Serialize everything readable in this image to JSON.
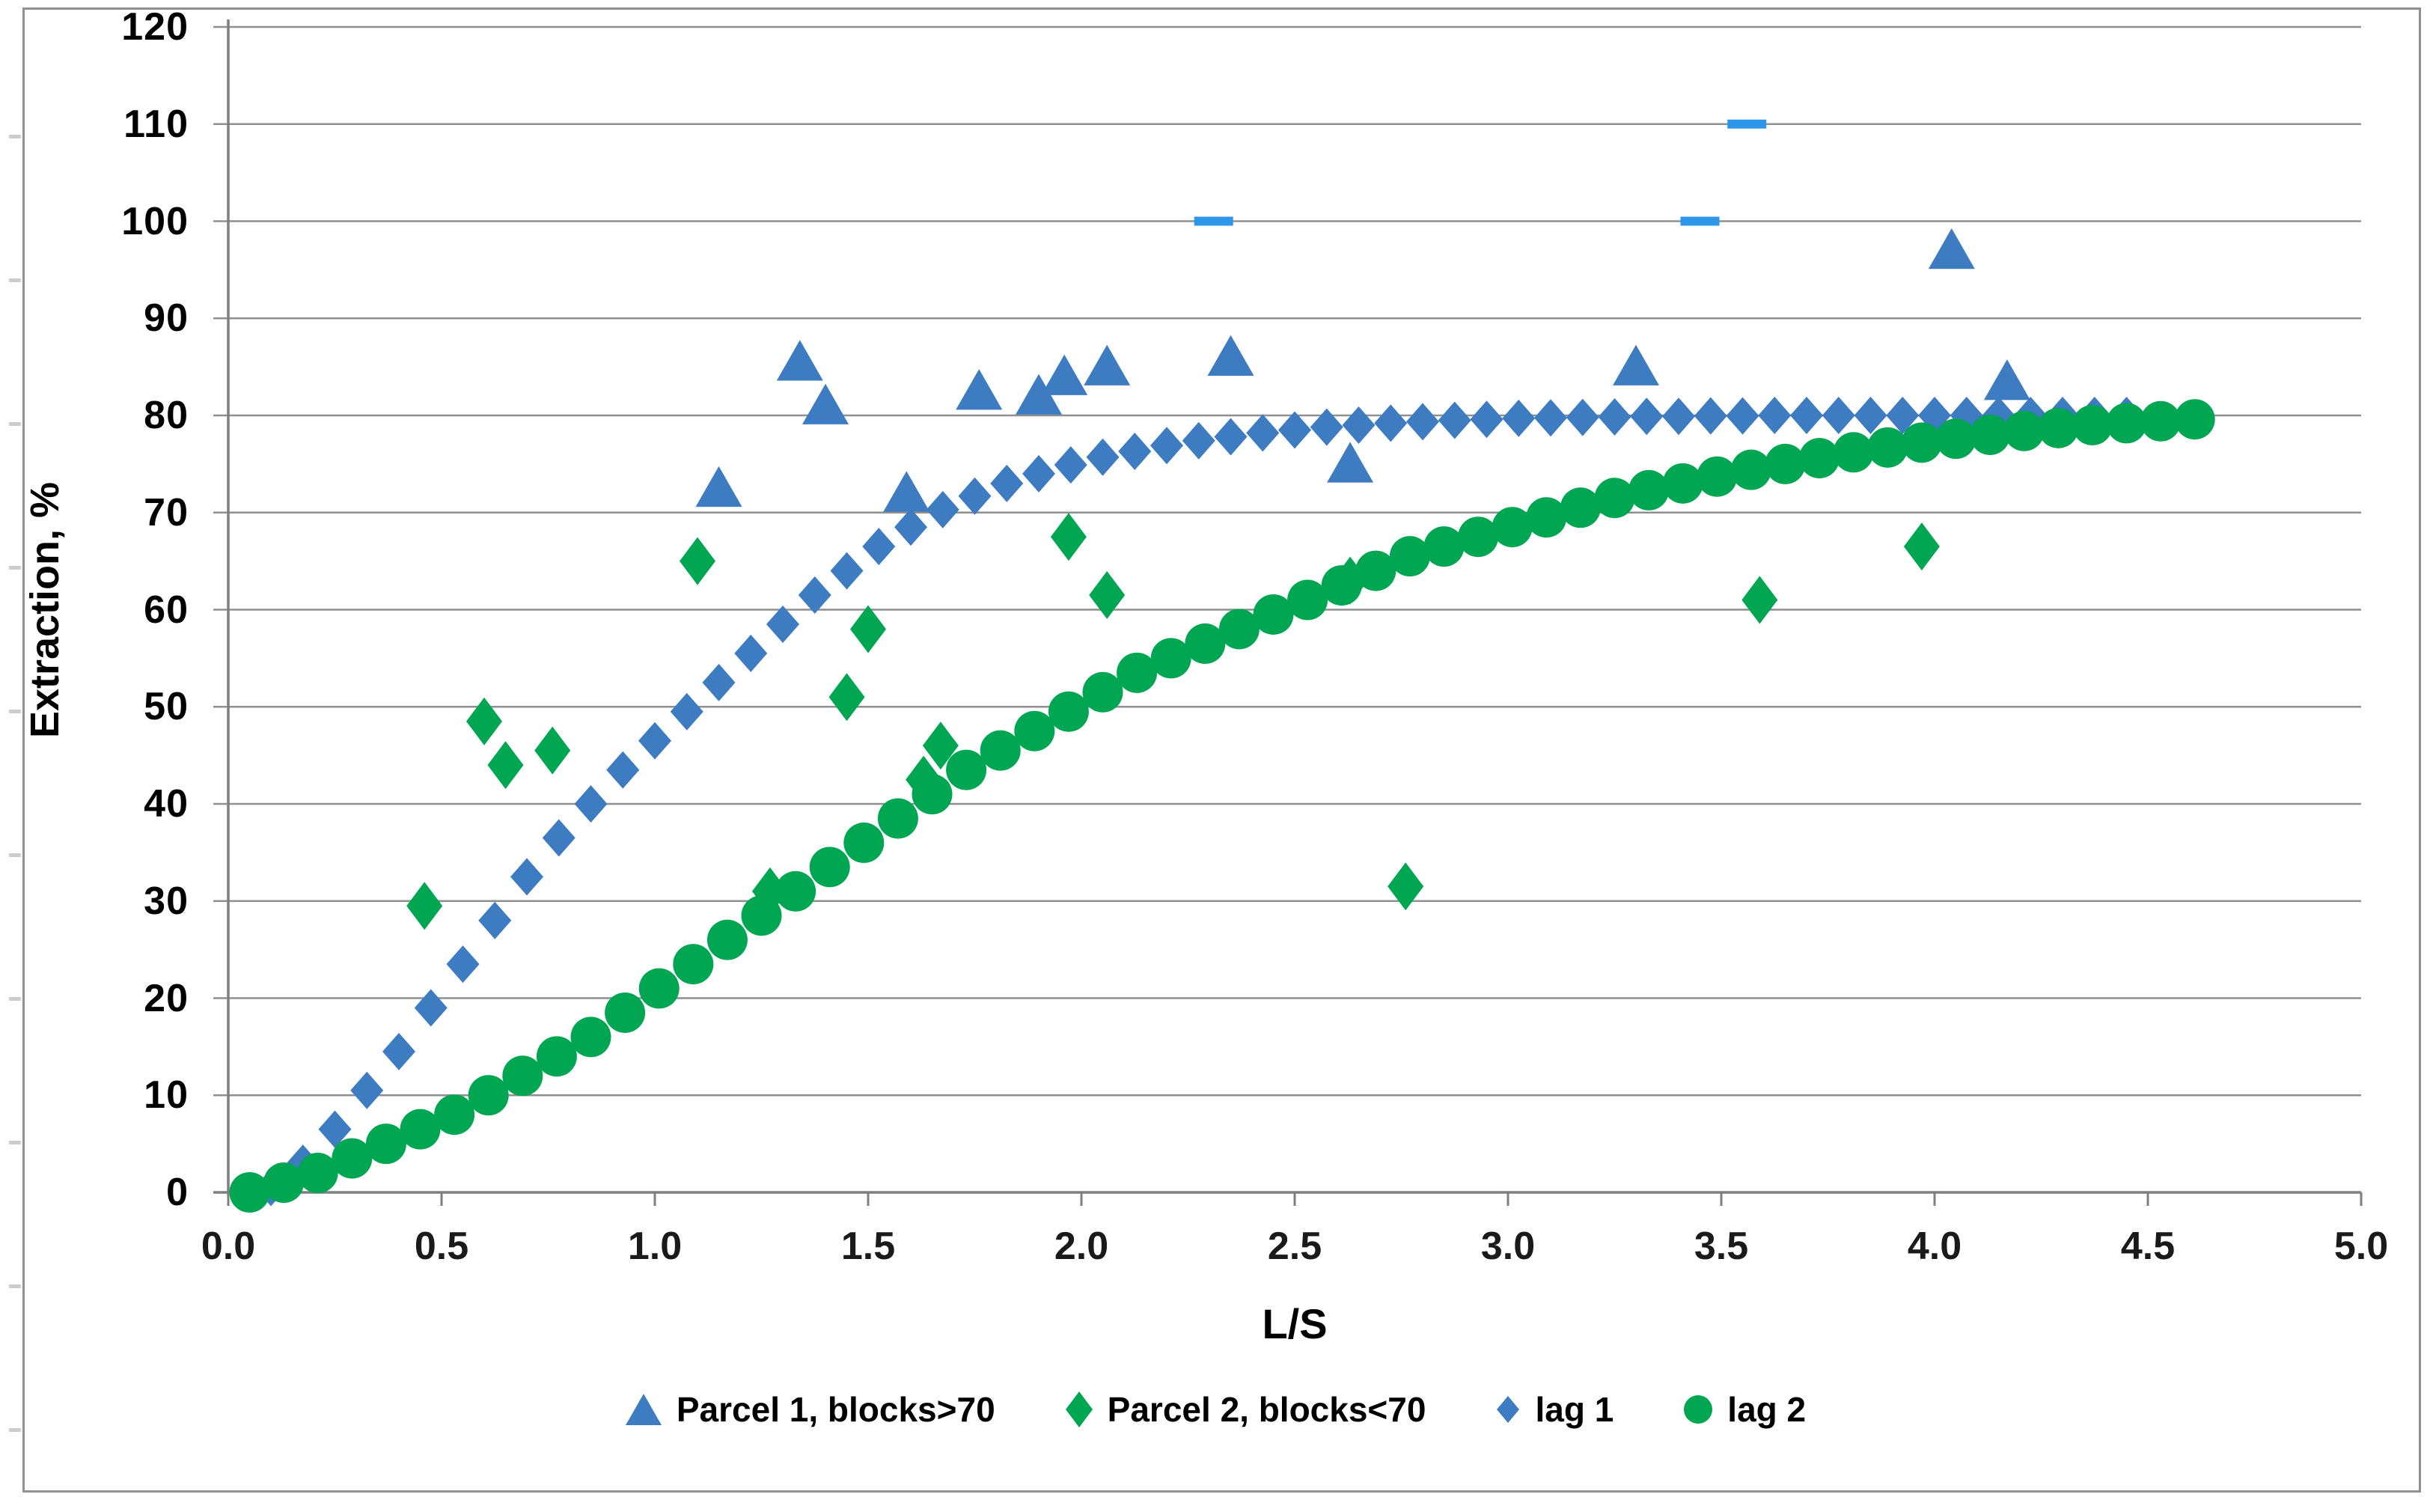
{
  "chart_data": {
    "type": "scatter",
    "title": "",
    "xlabel": "L/S",
    "ylabel": "Extraction, %",
    "xlim": [
      0.0,
      5.0
    ],
    "ylim": [
      0,
      120
    ],
    "x_ticks": [
      "0.0",
      "0.5",
      "1.0",
      "1.5",
      "2.0",
      "2.5",
      "3.0",
      "3.5",
      "4.0",
      "4.5",
      "5.0"
    ],
    "y_ticks": [
      "0",
      "10",
      "20",
      "30",
      "40",
      "50",
      "60",
      "70",
      "80",
      "90",
      "100",
      "110",
      "120"
    ],
    "grid": "horizontal",
    "legend_position": "bottom",
    "axis_color": "#7f7f7f",
    "gridline_color": "#8f8f8f",
    "clipped_marker_color": "#2e96e8",
    "series": [
      {
        "name": "Parcel 1, blocks>70",
        "marker": "triangle",
        "color": "#3d7cc0",
        "points": [
          [
            1.15,
            72.5
          ],
          [
            1.34,
            85.5
          ],
          [
            1.4,
            81
          ],
          [
            1.59,
            72
          ],
          [
            1.76,
            82.5
          ],
          [
            1.9,
            82
          ],
          [
            1.96,
            84
          ],
          [
            2.06,
            85
          ],
          [
            2.31,
            100
          ],
          [
            2.35,
            86
          ],
          [
            2.63,
            75
          ],
          [
            3.3,
            85
          ],
          [
            3.45,
            100
          ],
          [
            3.56,
            110
          ],
          [
            4.04,
            97
          ],
          [
            4.17,
            83.5
          ]
        ]
      },
      {
        "name": "Parcel 2, blocks<70",
        "marker": "diamond",
        "color": "#00a651",
        "points": [
          [
            0.46,
            29.5
          ],
          [
            0.6,
            48.5
          ],
          [
            0.65,
            44
          ],
          [
            0.76,
            45.5
          ],
          [
            1.1,
            65
          ],
          [
            1.27,
            31
          ],
          [
            1.45,
            51
          ],
          [
            1.5,
            58
          ],
          [
            1.63,
            42.5
          ],
          [
            1.67,
            46
          ],
          [
            1.97,
            67.5
          ],
          [
            2.06,
            61.5
          ],
          [
            2.63,
            63
          ],
          [
            2.76,
            31.5
          ],
          [
            3.59,
            61
          ],
          [
            3.97,
            66.5
          ]
        ]
      },
      {
        "name": "lag 1",
        "marker": "small-diamond",
        "color": "#3d7cc0",
        "points": [
          [
            0.1,
            0.5
          ],
          [
            0.175,
            3
          ],
          [
            0.25,
            6.5
          ],
          [
            0.325,
            10.5
          ],
          [
            0.4,
            14.5
          ],
          [
            0.475,
            19
          ],
          [
            0.55,
            23.5
          ],
          [
            0.625,
            28
          ],
          [
            0.7,
            32.5
          ],
          [
            0.775,
            36.5
          ],
          [
            0.85,
            40
          ],
          [
            0.925,
            43.5
          ],
          [
            1.0,
            46.5
          ],
          [
            1.075,
            49.5
          ],
          [
            1.15,
            52.5
          ],
          [
            1.225,
            55.5
          ],
          [
            1.3,
            58.5
          ],
          [
            1.375,
            61.5
          ],
          [
            1.45,
            64
          ],
          [
            1.525,
            66.5
          ],
          [
            1.6,
            68.5
          ],
          [
            1.675,
            70.3
          ],
          [
            1.75,
            71.7
          ],
          [
            1.825,
            73
          ],
          [
            1.9,
            74
          ],
          [
            1.975,
            74.9
          ],
          [
            2.05,
            75.7
          ],
          [
            2.125,
            76.3
          ],
          [
            2.2,
            76.9
          ],
          [
            2.275,
            77.4
          ],
          [
            2.35,
            77.8
          ],
          [
            2.425,
            78.2
          ],
          [
            2.5,
            78.5
          ],
          [
            2.575,
            78.8
          ],
          [
            2.65,
            79.0
          ],
          [
            2.725,
            79.2
          ],
          [
            2.8,
            79.35
          ],
          [
            2.875,
            79.5
          ],
          [
            2.95,
            79.6
          ],
          [
            3.025,
            79.7
          ],
          [
            3.1,
            79.75
          ],
          [
            3.175,
            79.8
          ],
          [
            3.25,
            79.85
          ],
          [
            3.325,
            79.9
          ],
          [
            3.4,
            79.9
          ],
          [
            3.475,
            79.95
          ],
          [
            3.55,
            79.95
          ],
          [
            3.625,
            80
          ],
          [
            3.7,
            80
          ],
          [
            3.775,
            80
          ],
          [
            3.85,
            80
          ],
          [
            3.925,
            80
          ],
          [
            4.0,
            80
          ],
          [
            4.075,
            80
          ],
          [
            4.15,
            80
          ],
          [
            4.225,
            80
          ],
          [
            4.3,
            80
          ],
          [
            4.375,
            80
          ],
          [
            4.45,
            80
          ]
        ]
      },
      {
        "name": "lag 2",
        "marker": "circle",
        "color": "#00a651",
        "points": [
          [
            0.05,
            0
          ],
          [
            0.13,
            1
          ],
          [
            0.21,
            2
          ],
          [
            0.29,
            3.5
          ],
          [
            0.37,
            5
          ],
          [
            0.45,
            6.5
          ],
          [
            0.53,
            8
          ],
          [
            0.61,
            10
          ],
          [
            0.69,
            12
          ],
          [
            0.77,
            14
          ],
          [
            0.85,
            16
          ],
          [
            0.93,
            18.5
          ],
          [
            1.01,
            21
          ],
          [
            1.09,
            23.5
          ],
          [
            1.17,
            26
          ],
          [
            1.25,
            28.5
          ],
          [
            1.33,
            31
          ],
          [
            1.41,
            33.5
          ],
          [
            1.49,
            36
          ],
          [
            1.57,
            38.5
          ],
          [
            1.65,
            41
          ],
          [
            1.73,
            43.5
          ],
          [
            1.81,
            45.5
          ],
          [
            1.89,
            47.5
          ],
          [
            1.97,
            49.5
          ],
          [
            2.05,
            51.5
          ],
          [
            2.13,
            53.5
          ],
          [
            2.21,
            55
          ],
          [
            2.29,
            56.5
          ],
          [
            2.37,
            58
          ],
          [
            2.45,
            59.5
          ],
          [
            2.53,
            61
          ],
          [
            2.61,
            62.5
          ],
          [
            2.69,
            64
          ],
          [
            2.77,
            65.5
          ],
          [
            2.85,
            66.5
          ],
          [
            2.93,
            67.5
          ],
          [
            3.01,
            68.5
          ],
          [
            3.09,
            69.5
          ],
          [
            3.17,
            70.5
          ],
          [
            3.25,
            71.5
          ],
          [
            3.33,
            72.3
          ],
          [
            3.41,
            73
          ],
          [
            3.49,
            73.7
          ],
          [
            3.57,
            74.4
          ],
          [
            3.65,
            75
          ],
          [
            3.73,
            75.6
          ],
          [
            3.81,
            76.2
          ],
          [
            3.89,
            76.7
          ],
          [
            3.97,
            77.2
          ],
          [
            4.05,
            77.6
          ],
          [
            4.13,
            78
          ],
          [
            4.21,
            78.4
          ],
          [
            4.29,
            78.7
          ],
          [
            4.37,
            79
          ],
          [
            4.45,
            79.2
          ],
          [
            4.53,
            79.4
          ],
          [
            4.61,
            79.6
          ]
        ]
      }
    ]
  }
}
